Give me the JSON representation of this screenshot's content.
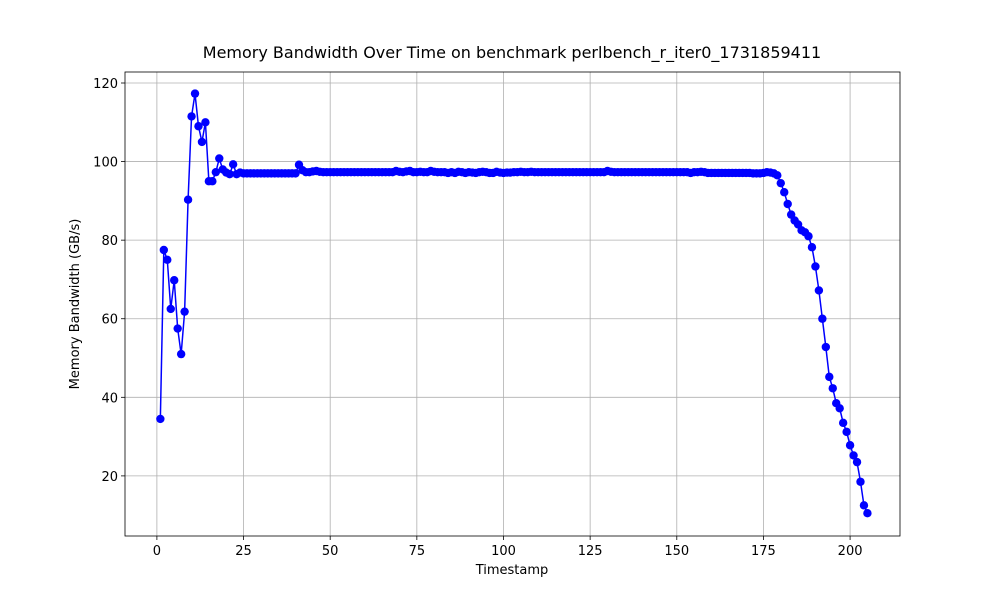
{
  "chart_data": {
    "type": "line",
    "title": "Memory Bandwidth Over Time on benchmark perlbench_r_iter0_1731859411",
    "x_label": "Timestamp",
    "y_label": "Memory Bandwidth (GB/s)",
    "color": "#0000ff",
    "grid": true,
    "marker": "o",
    "xlim": [
      -9.2,
      214.4
    ],
    "ylim": [
      4.7,
      122.8
    ],
    "xticks": [
      0,
      25,
      50,
      75,
      100,
      125,
      150,
      175,
      200
    ],
    "yticks": [
      20,
      40,
      60,
      80,
      100,
      120
    ],
    "x": [
      1,
      2,
      3,
      4,
      5,
      6,
      7,
      8,
      9,
      10,
      11,
      12,
      13,
      14,
      15,
      16,
      17,
      18,
      19,
      20,
      21,
      22,
      23,
      24,
      25,
      26,
      27,
      28,
      29,
      30,
      31,
      32,
      33,
      34,
      35,
      36,
      37,
      38,
      39,
      40,
      41,
      42,
      43,
      44,
      45,
      46,
      47,
      48,
      49,
      50,
      51,
      52,
      53,
      54,
      55,
      56,
      57,
      58,
      59,
      60,
      61,
      62,
      63,
      64,
      65,
      66,
      67,
      68,
      69,
      70,
      71,
      72,
      73,
      74,
      75,
      76,
      77,
      78,
      79,
      80,
      81,
      82,
      83,
      84,
      85,
      86,
      87,
      88,
      89,
      90,
      91,
      92,
      93,
      94,
      95,
      96,
      97,
      98,
      99,
      100,
      101,
      102,
      103,
      104,
      105,
      106,
      107,
      108,
      109,
      110,
      111,
      112,
      113,
      114,
      115,
      116,
      117,
      118,
      119,
      120,
      121,
      122,
      123,
      124,
      125,
      126,
      127,
      128,
      129,
      130,
      131,
      132,
      133,
      134,
      135,
      136,
      137,
      138,
      139,
      140,
      141,
      142,
      143,
      144,
      145,
      146,
      147,
      148,
      149,
      150,
      151,
      152,
      153,
      154,
      155,
      156,
      157,
      158,
      159,
      160,
      161,
      162,
      163,
      164,
      165,
      166,
      167,
      168,
      169,
      170,
      171,
      172,
      173,
      174,
      175,
      176,
      177,
      178,
      179,
      180,
      181,
      182,
      183,
      184,
      185,
      186,
      187,
      188,
      189,
      190,
      191,
      192,
      193,
      194,
      195,
      196,
      197,
      198,
      199,
      200,
      201,
      202,
      203,
      204,
      205
    ],
    "values": [
      34.5,
      77.5,
      75,
      62.5,
      69.8,
      57.5,
      51,
      61.8,
      90.3,
      111.5,
      117.3,
      109,
      105,
      110,
      95,
      95,
      97.3,
      100.8,
      98,
      97.2,
      96.8,
      99.3,
      96.8,
      97.2,
      97,
      97,
      97,
      97,
      97,
      97,
      97,
      97,
      97,
      97,
      97,
      97,
      97,
      97,
      97,
      97,
      99.2,
      97.8,
      97.3,
      97.3,
      97.5,
      97.6,
      97.4,
      97.3,
      97.3,
      97.3,
      97.3,
      97.3,
      97.3,
      97.3,
      97.3,
      97.3,
      97.3,
      97.3,
      97.3,
      97.3,
      97.3,
      97.3,
      97.3,
      97.3,
      97.3,
      97.3,
      97.3,
      97.3,
      97.6,
      97.4,
      97.3,
      97.5,
      97.6,
      97.3,
      97.3,
      97.4,
      97.3,
      97.3,
      97.6,
      97.4,
      97.3,
      97.3,
      97.3,
      97.1,
      97.3,
      97.1,
      97.4,
      97.3,
      97.1,
      97.3,
      97.2,
      97.1,
      97.3,
      97.4,
      97.3,
      97.1,
      97.1,
      97.4,
      97.2,
      97.1,
      97.2,
      97.2,
      97.3,
      97.3,
      97.4,
      97.3,
      97.3,
      97.4,
      97.3,
      97.3,
      97.3,
      97.3,
      97.3,
      97.3,
      97.3,
      97.3,
      97.3,
      97.3,
      97.3,
      97.3,
      97.3,
      97.3,
      97.3,
      97.3,
      97.3,
      97.3,
      97.3,
      97.3,
      97.3,
      97.6,
      97.4,
      97.3,
      97.3,
      97.3,
      97.3,
      97.3,
      97.3,
      97.3,
      97.3,
      97.3,
      97.3,
      97.3,
      97.3,
      97.3,
      97.3,
      97.3,
      97.3,
      97.3,
      97.3,
      97.3,
      97.3,
      97.3,
      97.3,
      97.1,
      97.3,
      97.3,
      97.4,
      97.3,
      97.1,
      97.1,
      97.1,
      97.1,
      97.1,
      97.1,
      97.1,
      97.1,
      97.1,
      97.1,
      97.1,
      97.1,
      97.1,
      97,
      97,
      97,
      97.1,
      97.3,
      97.2,
      97,
      96.5,
      94.5,
      92.2,
      89.2,
      86.5,
      85,
      84,
      82.5,
      82,
      81,
      78.2,
      73.3,
      67.2,
      60,
      52.8,
      45.2,
      42.3,
      38.5,
      37.2,
      33.5,
      31.2,
      27.8,
      25.2,
      23.5,
      18.5,
      12.5,
      10.5
    ]
  }
}
